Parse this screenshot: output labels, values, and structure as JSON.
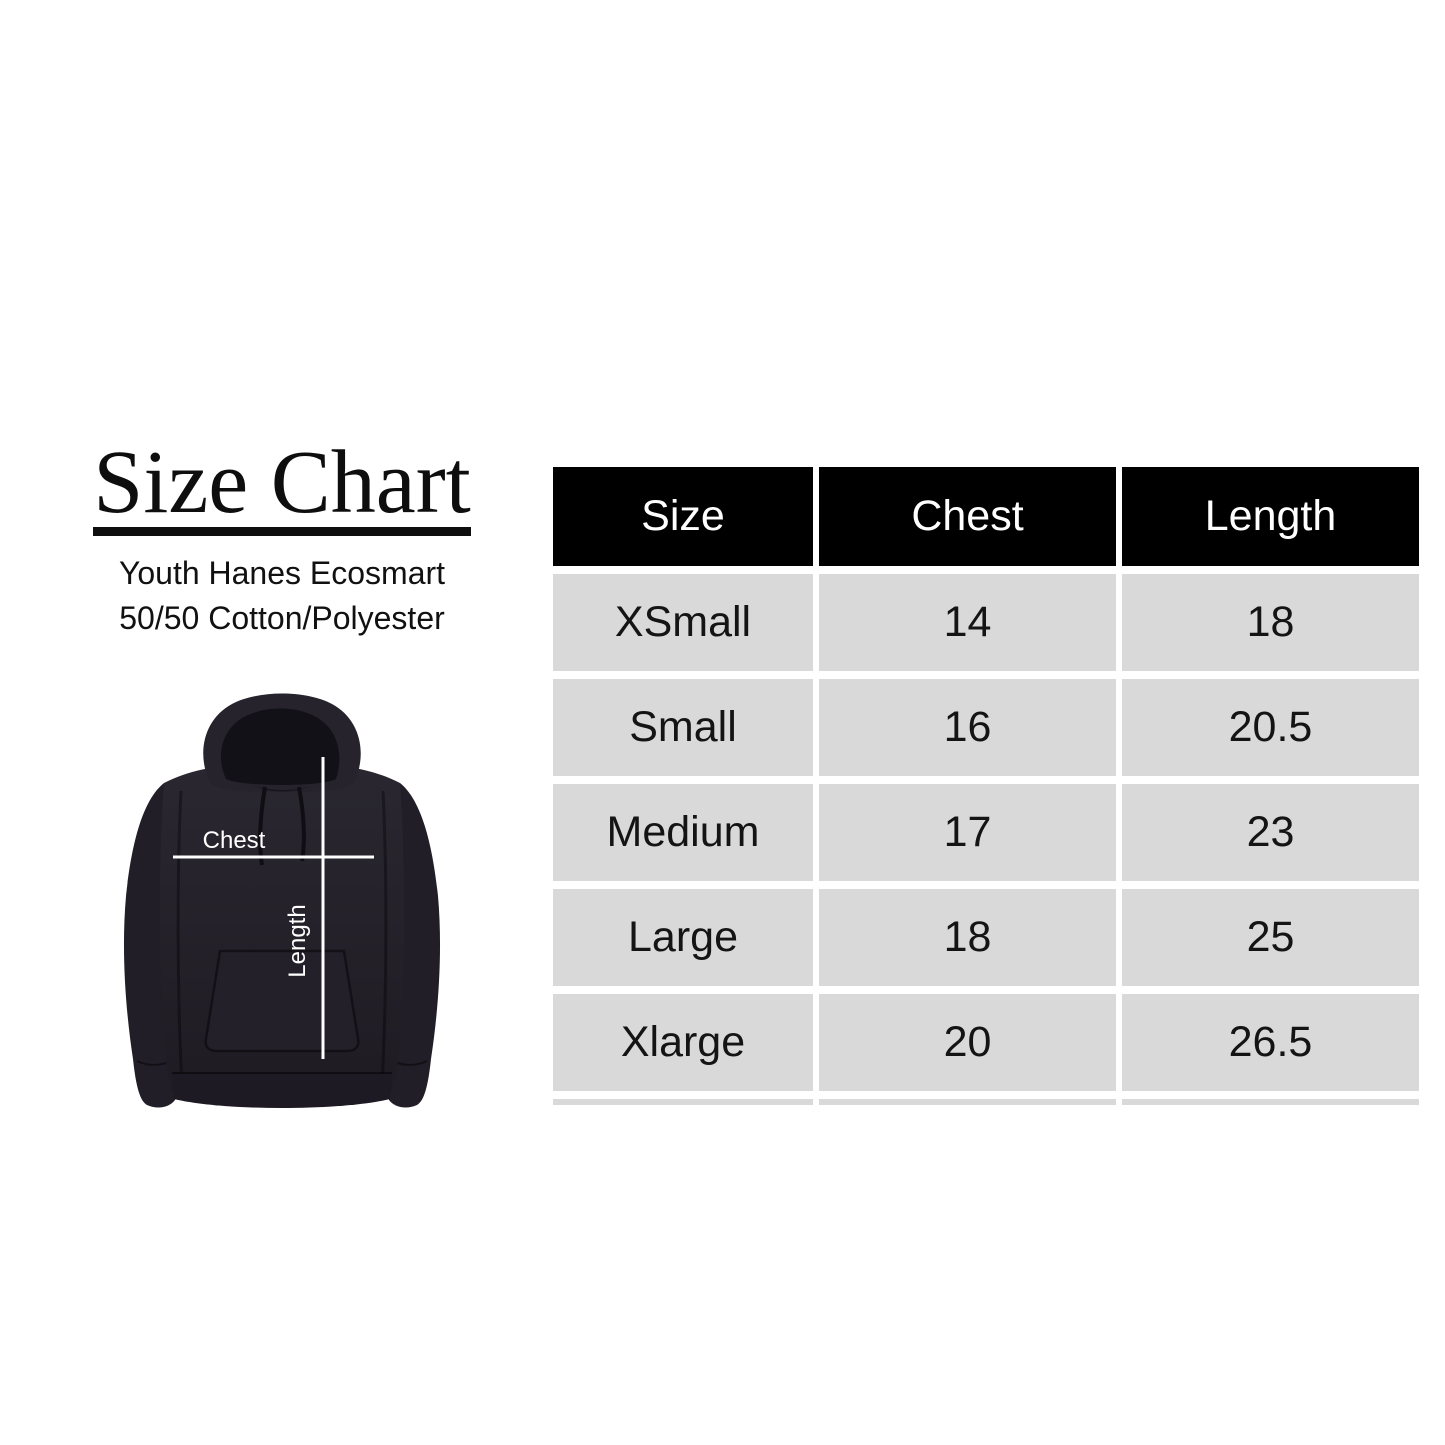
{
  "left_panel": {
    "title": "Size Chart",
    "subtitle_line1": "Youth Hanes Ecosmart",
    "subtitle_line2": "50/50 Cotton/Polyester",
    "hoodie": {
      "chest_label": "Chest",
      "length_label": "Length"
    }
  },
  "size_table": {
    "headers": [
      "Size",
      "Chest",
      "Length"
    ],
    "rows": [
      {
        "size": "XSmall",
        "chest": "14",
        "length": "18"
      },
      {
        "size": "Small",
        "chest": "16",
        "length": "20.5"
      },
      {
        "size": "Medium",
        "chest": "17",
        "length": "23"
      },
      {
        "size": "Large",
        "chest": "18",
        "length": "25"
      },
      {
        "size": "Xlarge",
        "chest": "20",
        "length": "26.5"
      }
    ],
    "colors": {
      "header_bg": "#000000",
      "header_text": "#ffffff",
      "row_bg": "#d9d9d9",
      "row_text": "#141414"
    }
  },
  "chart_data": {
    "type": "table",
    "title": "Size Chart",
    "subtitle": "Youth Hanes Ecosmart 50/50 Cotton/Polyester",
    "columns": [
      "Size",
      "Chest",
      "Length"
    ],
    "rows": [
      [
        "XSmall",
        14,
        18
      ],
      [
        "Small",
        16,
        20.5
      ],
      [
        "Medium",
        17,
        23
      ],
      [
        "Large",
        18,
        25
      ],
      [
        "Xlarge",
        20,
        26.5
      ]
    ],
    "legend_position": "none",
    "grid": false
  }
}
